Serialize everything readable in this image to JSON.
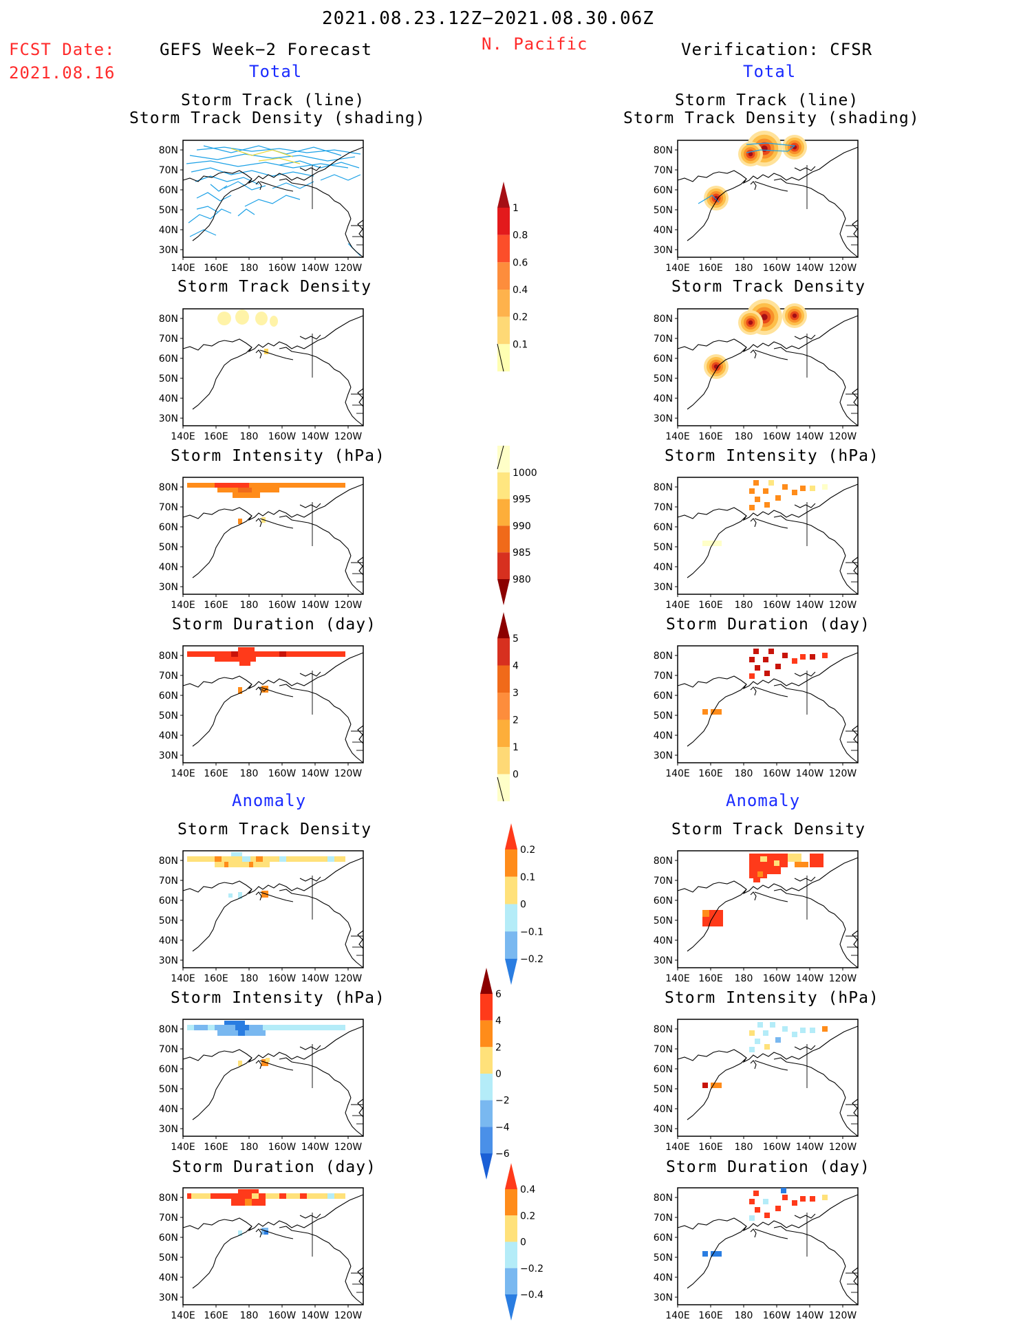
{
  "header": {
    "period": "2021.08.23.12Z−2021.08.30.06Z",
    "fcst_label": "FCST Date:",
    "fcst_date": "2021.08.16",
    "left_title": "GEFS Week−2 Forecast",
    "region": "N. Pacific",
    "right_title": "Verification: CFSR",
    "left_total": "Total",
    "right_total": "Total",
    "left_anomaly": "Anomaly",
    "right_anomaly": "Anomaly"
  },
  "map_axes": {
    "lat_labels": [
      "80N",
      "70N",
      "60N",
      "50N",
      "40N",
      "30N"
    ],
    "lon_labels": [
      "140E",
      "160E",
      "180",
      "160W",
      "140W",
      "120W"
    ]
  },
  "panels": {
    "r0_l1": "Storm Track (line)",
    "r0_l2": "Storm Track Density (shading)",
    "r1": "Storm Track Density",
    "r2": "Storm Intensity (hPa)",
    "r3": "Storm Duration (day)",
    "r4": "Storm Track Density",
    "r5": "Storm Intensity (hPa)",
    "r6": "Storm Duration (day)"
  },
  "colorbars": {
    "density": {
      "labels": [
        "1",
        "0.8",
        "0.6",
        "0.4",
        "0.2",
        "0.1"
      ],
      "colors": [
        "#a50f15",
        "#e31a1c",
        "#fc4e2a",
        "#fd8d3c",
        "#feb24c",
        "#fed976",
        "#ffffb2"
      ]
    },
    "intensity": {
      "labels": [
        "1000",
        "995",
        "990",
        "985",
        "980"
      ],
      "colors": [
        "#ffffc8",
        "#ffe680",
        "#fdae3a",
        "#f06a1a",
        "#d7301f",
        "#8b0000"
      ]
    },
    "duration": {
      "labels": [
        "5",
        "4",
        "3",
        "2",
        "1",
        "0"
      ],
      "colors": [
        "#8b0000",
        "#d7301f",
        "#f06a1a",
        "#fd8d3c",
        "#fdae3a",
        "#fed976",
        "#ffffc8"
      ]
    },
    "anom_density": {
      "labels": [
        "0.2",
        "0.1",
        "0",
        "−0.1",
        "−0.2"
      ],
      "colors": [
        "#ff3a1a",
        "#ff8c1a",
        "#ffe17a",
        "#b4ecf8",
        "#79b8f0",
        "#2a7de1"
      ]
    },
    "anom_intensity": {
      "labels": [
        "6",
        "4",
        "2",
        "0",
        "−2",
        "−4",
        "−6"
      ],
      "colors": [
        "#8b0000",
        "#ff3a1a",
        "#ff8c1a",
        "#ffe17a",
        "#b4ecf8",
        "#79b8f0",
        "#4a90e8",
        "#1a5fd6"
      ]
    },
    "anom_duration": {
      "labels": [
        "0.4",
        "0.2",
        "0",
        "−0.2",
        "−0.4"
      ],
      "colors": [
        "#ff3a1a",
        "#ff8c1a",
        "#ffe17a",
        "#b4ecf8",
        "#79b8f0",
        "#2a7de1"
      ]
    }
  }
}
